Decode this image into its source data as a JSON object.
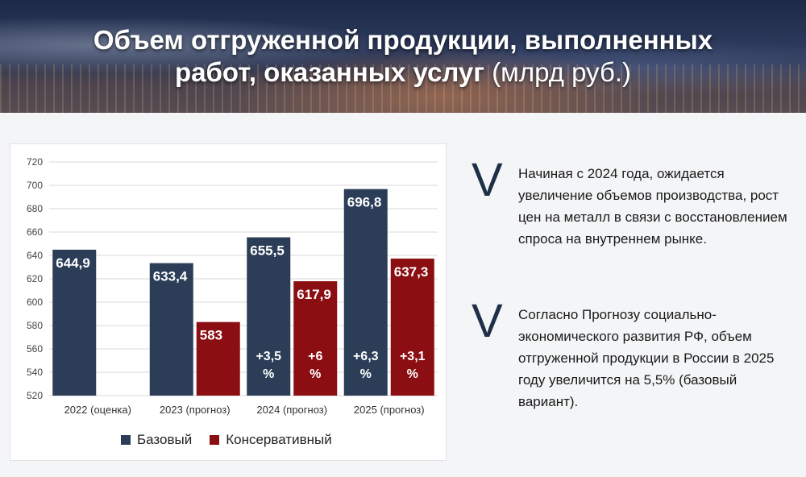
{
  "header": {
    "title_line1": "Объем отгруженной продукции, выполненных",
    "title_line2_bold": "работ, оказанных услуг",
    "title_line2_unit": "(млрд руб.)"
  },
  "chart_data": {
    "type": "bar",
    "title": "Объем отгруженной продукции, выполненных работ, оказанных услуг (млрд руб.)",
    "categories": [
      "2022 (оценка)",
      "2023 (прогноз)",
      "2024 (прогноз)",
      "2025 (прогноз)"
    ],
    "series": [
      {
        "name": "Базовый",
        "color": "#2b3d57",
        "values": [
          644.9,
          633.4,
          655.5,
          696.8
        ],
        "labels": [
          "644,9",
          "633,4",
          "655,5",
          "696,8"
        ],
        "growth": [
          null,
          null,
          "+3,5 %",
          "+6,3 %"
        ]
      },
      {
        "name": "Консервативный",
        "color": "#8b0e12",
        "values": [
          null,
          583,
          617.9,
          637.3
        ],
        "labels": [
          null,
          "583",
          "617,9",
          "637,3"
        ],
        "growth": [
          null,
          null,
          "+6 %",
          "+3,1 %"
        ]
      }
    ],
    "ylim": [
      520,
      720
    ],
    "yticks": [
      520,
      540,
      560,
      580,
      600,
      620,
      640,
      660,
      680,
      700,
      720
    ],
    "xlabel": "",
    "ylabel": "",
    "grid": true,
    "legend": "bottom"
  },
  "legend": {
    "base": "Базовый",
    "conservative": "Консервативный"
  },
  "notes": [
    {
      "mark": "V",
      "text": "Начиная с 2024 года, ожидается увеличение объемов производства, рост цен на металл в связи с восстановлением спроса на внутреннем рынке."
    },
    {
      "mark": "V",
      "text": "Согласно Прогнозу социально-экономического развития РФ, объем отгруженной продукции в России в 2025 году увеличится на 5,5% (базовый вариант)."
    }
  ]
}
